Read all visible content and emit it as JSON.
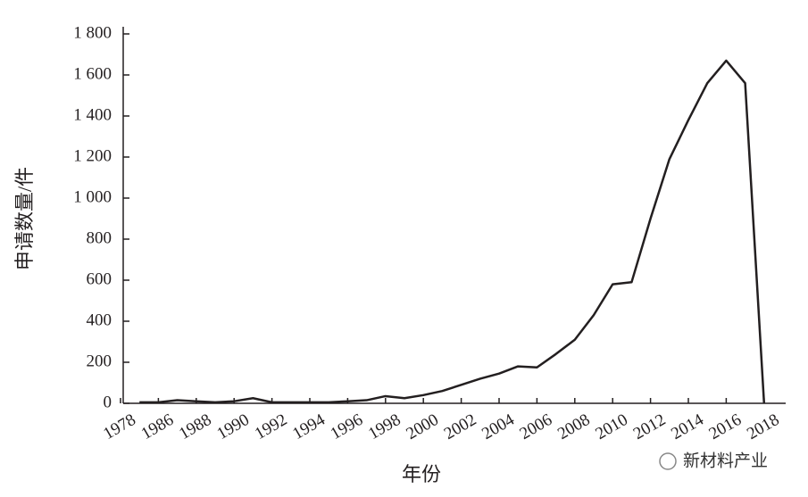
{
  "chart_data": {
    "type": "line",
    "y_label": "申请数量/件",
    "x_label": "年份",
    "watermark": "新材料产业",
    "categories": [
      "1978",
      null,
      "1986",
      null,
      "1988",
      null,
      "1990",
      null,
      "1992",
      null,
      "1994",
      null,
      "1996",
      null,
      "1998",
      null,
      "2000",
      null,
      "2002",
      null,
      "2004",
      null,
      "2006",
      null,
      "2008",
      null,
      "2010",
      null,
      "2012",
      null,
      "2014",
      null,
      "2016",
      null,
      "2018"
    ],
    "values": [
      null,
      5,
      5,
      15,
      10,
      5,
      10,
      25,
      5,
      5,
      5,
      5,
      10,
      15,
      35,
      25,
      40,
      60,
      90,
      120,
      145,
      180,
      175,
      240,
      310,
      430,
      580,
      590,
      900,
      1190,
      1380,
      1560,
      1670,
      1560,
      0
    ],
    "color": "#231f20",
    "ylim": [
      0,
      1800
    ],
    "yticks": [
      0,
      200,
      400,
      600,
      800,
      {
        "value": 1000,
        "label": "1 000"
      },
      {
        "value": 1200,
        "label": "1 200"
      },
      {
        "value": 1400,
        "label": "1 400"
      },
      {
        "value": 1600,
        "label": "1 600"
      },
      {
        "value": 1800,
        "label": "1 800"
      }
    ]
  }
}
